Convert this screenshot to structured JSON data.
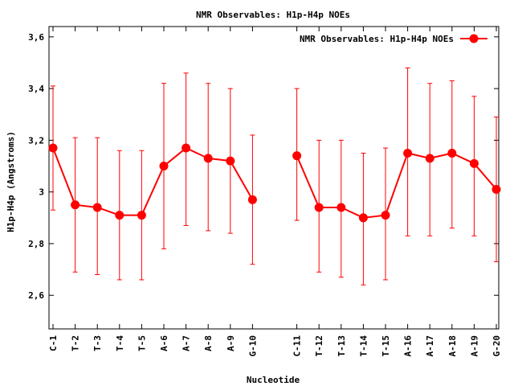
{
  "chart_data": {
    "type": "line",
    "title": "NMR Observables: H1p-H4p NOEs",
    "xlabel": "Nucleotide",
    "ylabel": "H1p-H4p (Angstroms)",
    "ylim": [
      2.47,
      3.64
    ],
    "yticks": [
      2.6,
      2.8,
      3,
      3.2,
      3.4,
      3.6
    ],
    "ytick_labels": [
      "2,6",
      "2,8",
      "3",
      "3,2",
      "3,4",
      "3,6"
    ],
    "grid": false,
    "legend_position": "top-right",
    "categories": [
      "C-1",
      "T-2",
      "T-3",
      "T-4",
      "T-5",
      "A-6",
      "A-7",
      "A-8",
      "A-9",
      "G-10",
      "C-11",
      "T-12",
      "T-13",
      "T-14",
      "T-15",
      "A-16",
      "A-17",
      "A-18",
      "A-19",
      "G-20"
    ],
    "series": [
      {
        "name": "NMR Observables: H1p-H4p NOEs",
        "color": "#ff0000",
        "segments": [
          {
            "categories": [
              "C-1",
              "T-2",
              "T-3",
              "T-4",
              "T-5",
              "A-6",
              "A-7",
              "A-8",
              "A-9",
              "G-10"
            ],
            "values": [
              3.17,
              2.95,
              2.94,
              2.91,
              2.91,
              3.1,
              3.17,
              3.13,
              3.12,
              2.97
            ],
            "err_low": [
              2.93,
              2.69,
              2.68,
              2.66,
              2.66,
              2.78,
              2.87,
              2.85,
              2.84,
              2.72
            ],
            "err_high": [
              3.41,
              3.21,
              3.21,
              3.16,
              3.16,
              3.42,
              3.46,
              3.42,
              3.4,
              3.22
            ]
          },
          {
            "categories": [
              "C-11",
              "T-12",
              "T-13",
              "T-14",
              "T-15",
              "A-16",
              "A-17",
              "A-18",
              "A-19",
              "G-20"
            ],
            "values": [
              3.14,
              2.94,
              2.94,
              2.9,
              2.91,
              3.15,
              3.13,
              3.15,
              3.11,
              3.01
            ],
            "err_low": [
              2.89,
              2.69,
              2.67,
              2.64,
              2.66,
              2.83,
              2.83,
              2.86,
              2.83,
              2.73
            ],
            "err_high": [
              3.4,
              3.2,
              3.2,
              3.15,
              3.17,
              3.48,
              3.42,
              3.43,
              3.37,
              3.29
            ]
          }
        ]
      }
    ]
  }
}
